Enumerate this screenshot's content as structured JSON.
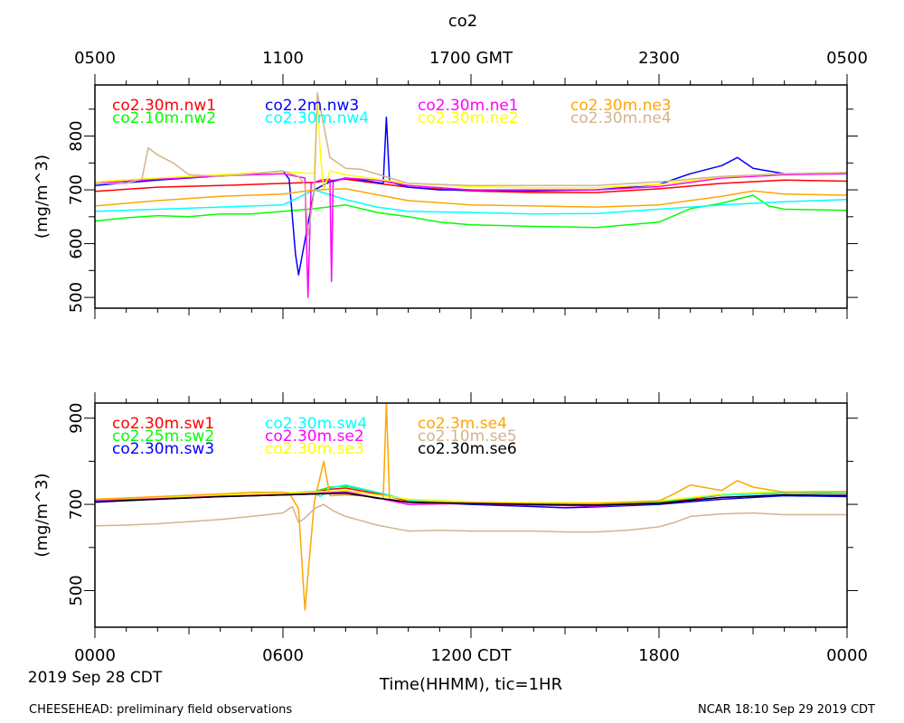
{
  "title": "co2",
  "gmt_ticks": [
    "0500",
    "1100",
    "1700 GMT",
    "2300",
    "0500"
  ],
  "cdt_ticks": [
    "0000",
    "0600",
    "1200 CDT",
    "1800",
    "0000"
  ],
  "date_label": "2019 Sep 28 CDT",
  "xlabel": "Time(HHMM), tic=1HR",
  "footer_left": "CHEESEHEAD: preliminary field observations",
  "footer_right": "NCAR 18:10 Sep 29 2019 CDT",
  "chart_data": [
    {
      "type": "line",
      "panel": "top",
      "ylabel": "(mg/m^3)",
      "x_unit": "hours since 0000 CDT",
      "xlim": [
        0,
        24
      ],
      "ylim": [
        480,
        895
      ],
      "yticks": [
        500,
        600,
        700,
        800
      ],
      "series": [
        {
          "name": "co2.30m.nw1",
          "color": "#ff0000",
          "x": [
            0,
            2,
            4,
            6,
            7,
            8,
            9,
            10,
            12,
            14,
            16,
            18,
            20,
            22,
            24
          ],
          "y": [
            697,
            705,
            708,
            712,
            714,
            720,
            712,
            705,
            698,
            695,
            695,
            702,
            712,
            718,
            716
          ]
        },
        {
          "name": "co2.10m.nw2",
          "color": "#00ff00",
          "x": [
            0,
            1,
            2,
            3,
            4,
            5,
            6,
            7,
            8,
            9,
            10,
            11,
            12,
            14,
            16,
            18,
            19,
            20,
            21,
            21.5,
            22,
            24
          ],
          "y": [
            642,
            648,
            652,
            650,
            655,
            655,
            660,
            665,
            672,
            658,
            650,
            640,
            635,
            632,
            630,
            640,
            665,
            675,
            690,
            670,
            664,
            662
          ]
        },
        {
          "name": "co2.2m.nw3",
          "color": "#0000ff",
          "x": [
            0,
            2,
            4,
            5,
            6,
            6.2,
            6.4,
            6.5,
            7,
            7.5,
            8,
            8.5,
            9.2,
            9.3,
            9.4,
            10,
            11,
            12,
            14,
            16,
            18,
            19,
            20,
            20.5,
            21,
            22,
            24
          ],
          "y": [
            708,
            718,
            726,
            730,
            735,
            720,
            580,
            542,
            700,
            715,
            722,
            718,
            712,
            835,
            715,
            705,
            700,
            700,
            698,
            700,
            710,
            730,
            745,
            760,
            740,
            730,
            732
          ]
        },
        {
          "name": "co2.30m.nw4",
          "color": "#00ffff",
          "x": [
            0,
            2,
            4,
            6,
            7,
            8,
            9,
            10,
            12,
            14,
            16,
            18,
            20,
            22,
            24
          ],
          "y": [
            660,
            664,
            668,
            672,
            700,
            682,
            668,
            660,
            658,
            655,
            656,
            664,
            672,
            678,
            682
          ]
        },
        {
          "name": "co2.30m.ne1",
          "color": "#ff00ff",
          "x": [
            0,
            2,
            4,
            6,
            6.7,
            6.8,
            6.9,
            7.2,
            7.5,
            7.55,
            7.6,
            8,
            9,
            10,
            12,
            14,
            16,
            18,
            20,
            22,
            24
          ],
          "y": [
            712,
            720,
            726,
            730,
            722,
            500,
            712,
            718,
            720,
            530,
            715,
            722,
            718,
            708,
            700,
            700,
            700,
            706,
            722,
            728,
            730
          ]
        },
        {
          "name": "co2.30m.ne2",
          "color": "#ffff00",
          "x": [
            0,
            2,
            4,
            6,
            7,
            7.1,
            7.2,
            7.3,
            7.5,
            8,
            10,
            12,
            14,
            16,
            18,
            20,
            22,
            24
          ],
          "y": [
            715,
            722,
            728,
            734,
            730,
            870,
            760,
            700,
            735,
            728,
            712,
            706,
            704,
            704,
            710,
            724,
            730,
            732
          ]
        },
        {
          "name": "co2.30m.ne3",
          "color": "#ffa500",
          "x": [
            0,
            2,
            4,
            6,
            7,
            8,
            10,
            12,
            14,
            16,
            18,
            20,
            21,
            22,
            24
          ],
          "y": [
            670,
            680,
            688,
            692,
            700,
            702,
            680,
            672,
            670,
            668,
            672,
            688,
            698,
            692,
            690
          ]
        },
        {
          "name": "co2.30m.ne4",
          "color": "#d2b48c",
          "x": [
            0,
            1,
            1.5,
            1.7,
            2,
            2.5,
            3,
            4,
            5,
            6,
            6.5,
            6.7,
            6.8,
            7,
            7.1,
            7.5,
            8,
            8.5,
            10,
            12,
            14,
            16,
            18,
            20,
            22,
            24
          ],
          "y": [
            712,
            712,
            720,
            778,
            765,
            750,
            728,
            725,
            730,
            735,
            725,
            710,
            615,
            700,
            880,
            760,
            740,
            738,
            712,
            708,
            708,
            708,
            715,
            725,
            730,
            732
          ]
        }
      ]
    },
    {
      "type": "line",
      "panel": "bottom",
      "ylabel": "(mg/m^3)",
      "x_unit": "hours since 0000 CDT",
      "xlim": [
        0,
        24
      ],
      "ylim": [
        415,
        935
      ],
      "yticks": [
        500,
        700,
        900
      ],
      "series": [
        {
          "name": "co2.30m.sw1",
          "color": "#ff0000",
          "x": [
            0,
            2,
            4,
            6,
            7,
            7.5,
            8,
            9,
            10,
            12,
            14,
            16,
            18,
            19,
            20,
            22,
            24
          ],
          "y": [
            710,
            715,
            720,
            725,
            728,
            735,
            738,
            725,
            708,
            704,
            702,
            700,
            704,
            712,
            722,
            726,
            724
          ]
        },
        {
          "name": "co2.25m.sw2",
          "color": "#00ff00",
          "x": [
            0,
            2,
            4,
            6,
            7,
            7.5,
            8,
            9,
            10,
            12,
            14,
            16,
            18,
            19,
            20,
            22,
            24
          ],
          "y": [
            712,
            716,
            722,
            726,
            730,
            740,
            742,
            728,
            710,
            705,
            703,
            702,
            706,
            714,
            724,
            728,
            726
          ]
        },
        {
          "name": "co2.30m.sw3",
          "color": "#0000ff",
          "x": [
            0,
            2,
            4,
            6,
            7,
            8,
            9,
            10,
            12,
            14,
            15,
            16,
            18,
            20,
            22,
            24
          ],
          "y": [
            705,
            712,
            718,
            722,
            724,
            728,
            714,
            705,
            700,
            695,
            692,
            694,
            700,
            712,
            720,
            718
          ]
        },
        {
          "name": "co2.30m.sw4",
          "color": "#00ffff",
          "x": [
            0,
            2,
            4,
            6,
            7,
            7.2,
            7.5,
            8,
            9,
            10,
            12,
            14,
            16,
            18,
            20,
            22,
            24
          ],
          "y": [
            710,
            714,
            720,
            724,
            726,
            718,
            738,
            745,
            728,
            710,
            705,
            703,
            703,
            708,
            722,
            726,
            725
          ]
        },
        {
          "name": "co2.30m.se2",
          "color": "#ff00ff",
          "x": [
            0,
            2,
            4,
            6,
            8,
            10,
            12,
            14,
            16,
            18,
            20,
            22,
            24
          ],
          "y": [
            708,
            714,
            720,
            724,
            730,
            700,
            702,
            698,
            696,
            702,
            716,
            722,
            720
          ]
        },
        {
          "name": "co2.30m.se3",
          "color": "#ffff00",
          "x": [
            0,
            2,
            4,
            6,
            8,
            10,
            12,
            14,
            16,
            18,
            20,
            22,
            24
          ],
          "y": [
            712,
            716,
            722,
            726,
            732,
            712,
            706,
            704,
            704,
            708,
            724,
            730,
            730
          ]
        },
        {
          "name": "co2.3m.se4",
          "color": "#ffa500",
          "x": [
            0,
            2,
            4,
            5,
            6,
            6.2,
            6.5,
            6.7,
            7,
            7.3,
            7.5,
            8,
            8.5,
            9,
            9.2,
            9.3,
            9.4,
            10,
            12,
            14,
            16,
            18,
            18.5,
            19,
            20,
            20.5,
            21,
            22,
            24
          ],
          "y": [
            712,
            718,
            724,
            728,
            728,
            726,
            690,
            455,
            705,
            800,
            720,
            722,
            720,
            716,
            712,
            935,
            712,
            706,
            704,
            702,
            702,
            708,
            725,
            745,
            732,
            755,
            740,
            728,
            730
          ]
        },
        {
          "name": "co2.10m.se5",
          "color": "#d2b48c",
          "x": [
            0,
            1,
            2,
            3,
            4,
            5,
            6,
            6.3,
            6.5,
            6.7,
            7,
            7.3,
            7.6,
            8,
            8.5,
            9,
            9.5,
            10,
            11,
            12,
            13,
            14,
            15,
            16,
            17,
            18,
            18.5,
            19,
            20,
            21,
            22,
            23,
            24
          ],
          "y": [
            650,
            652,
            655,
            660,
            665,
            672,
            680,
            695,
            658,
            668,
            690,
            700,
            685,
            672,
            662,
            652,
            645,
            638,
            640,
            638,
            638,
            638,
            636,
            636,
            640,
            648,
            658,
            672,
            678,
            680,
            676,
            676,
            676
          ]
        },
        {
          "name": "co2.30m.se6",
          "color": "#000000",
          "x": [
            0,
            2,
            4,
            6,
            7,
            8,
            9,
            10,
            12,
            14,
            16,
            18,
            20,
            22,
            24
          ],
          "y": [
            706,
            712,
            718,
            722,
            724,
            726,
            715,
            705,
            702,
            700,
            698,
            702,
            716,
            722,
            720
          ]
        }
      ]
    }
  ]
}
